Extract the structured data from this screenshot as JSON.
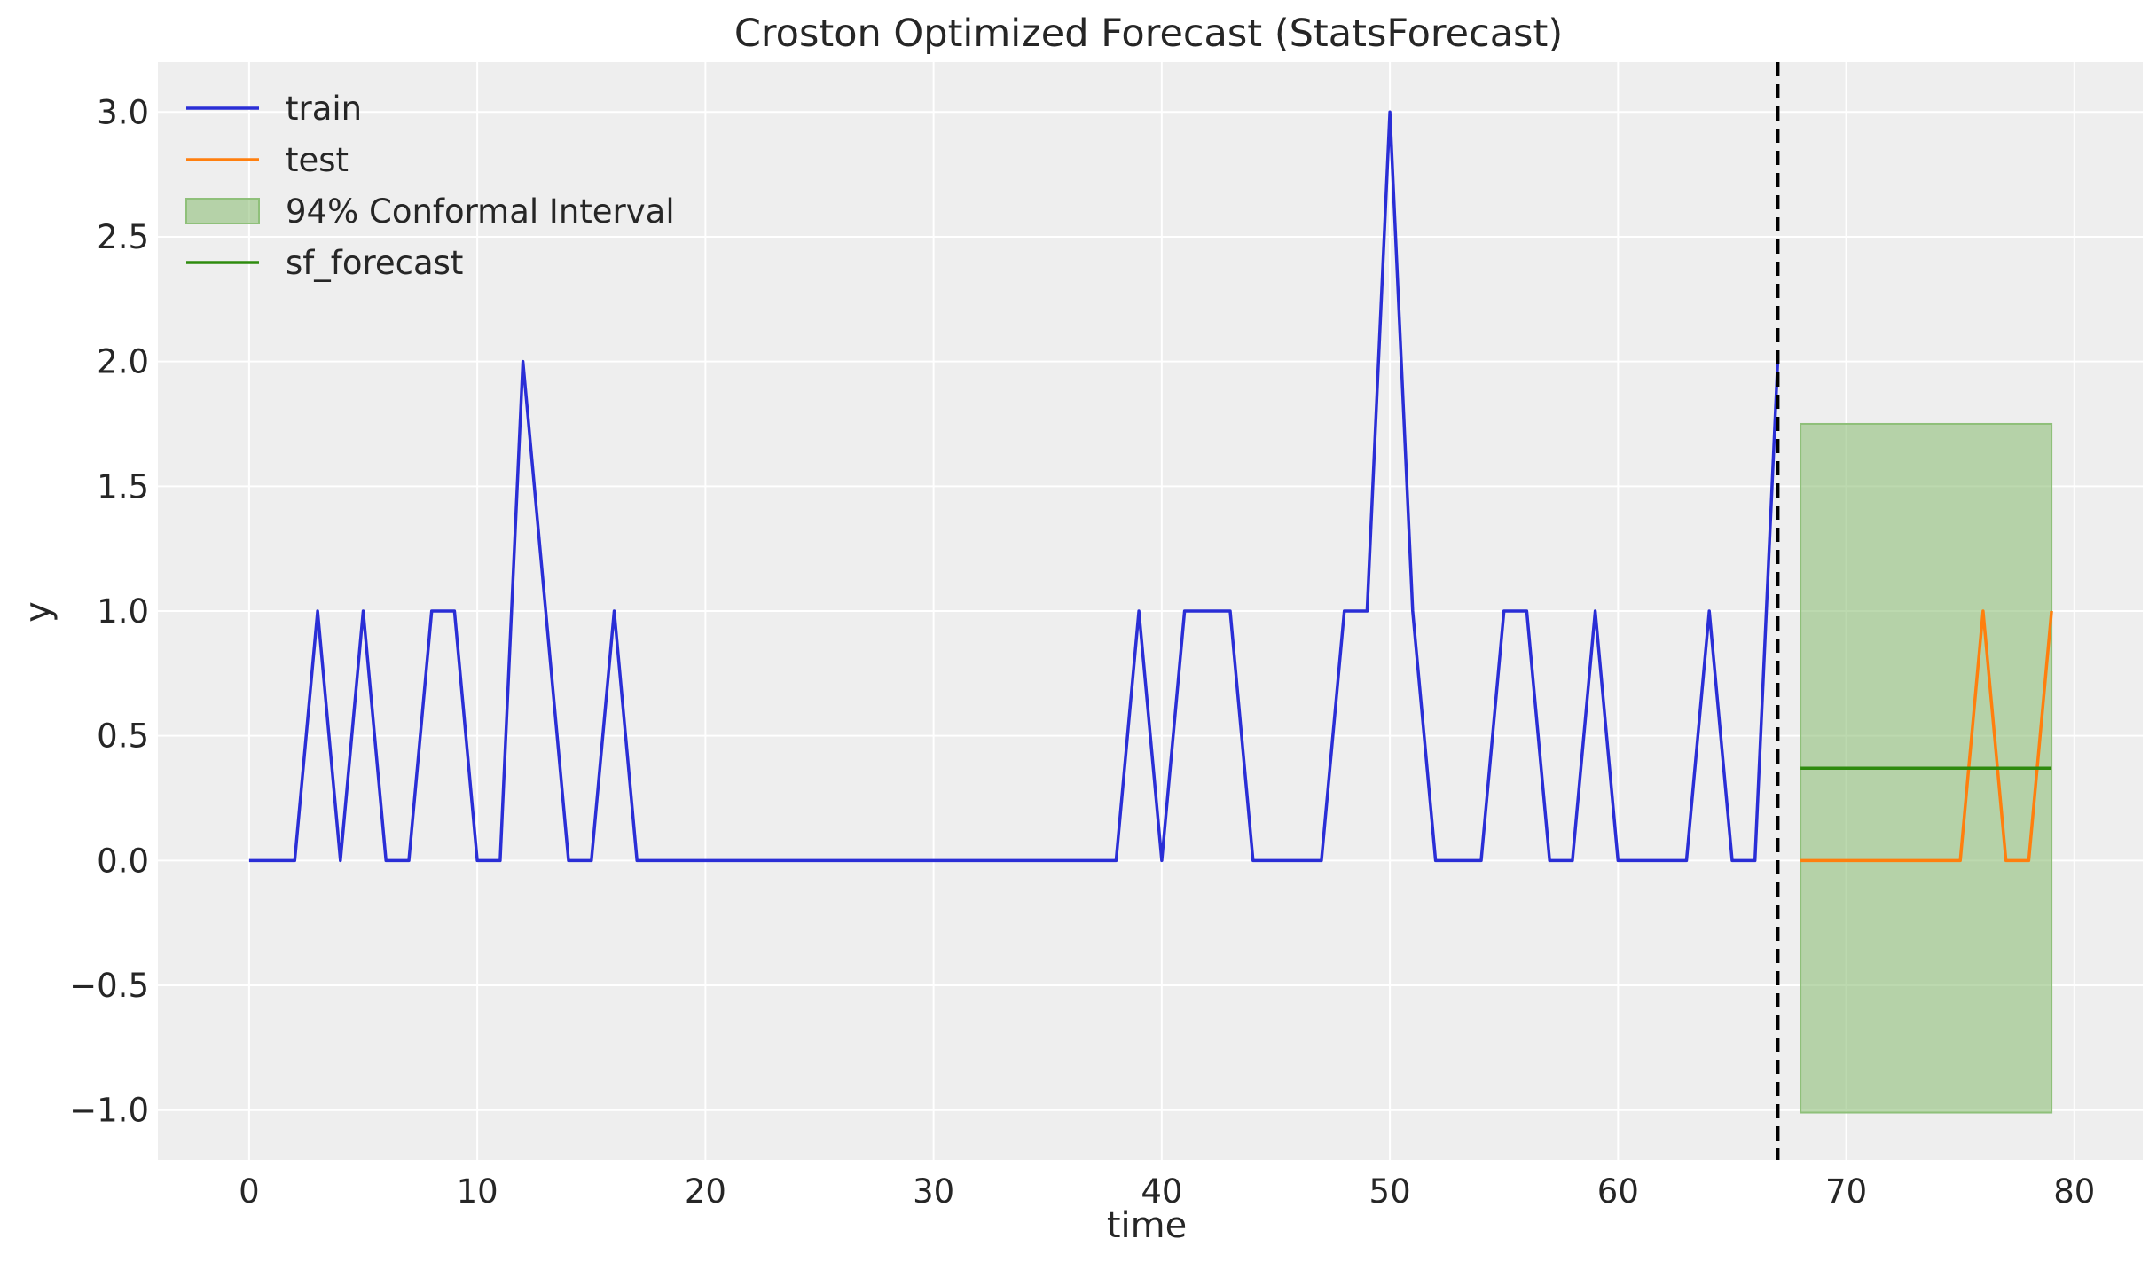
{
  "chart_data": {
    "type": "line",
    "title": "Croston Optimized Forecast (StatsForecast)",
    "xlabel": "time",
    "ylabel": "y",
    "xlim": [
      -4,
      83
    ],
    "ylim": [
      -1.2,
      3.2
    ],
    "xticks": [
      0,
      10,
      20,
      30,
      40,
      50,
      60,
      70,
      80
    ],
    "yticks": [
      -1.0,
      -0.5,
      0.0,
      0.5,
      1.0,
      1.5,
      2.0,
      2.5,
      3.0
    ],
    "xtick_labels": [
      "0",
      "10",
      "20",
      "30",
      "40",
      "50",
      "60",
      "70",
      "80"
    ],
    "ytick_labels": [
      "−1.0",
      "−0.5",
      "0.0",
      "0.5",
      "1.0",
      "1.5",
      "2.0",
      "2.5",
      "3.0"
    ],
    "grid": true,
    "legend_position": "top-left",
    "colors": {
      "background": "#eeeeee",
      "grid": "#ffffff",
      "train": "#2a2ed6",
      "test": "#ff7f0e",
      "interval_fill": "#8fc07a",
      "forecast": "#2e8b0e",
      "cutoff": "#000000"
    },
    "series": [
      {
        "name": "train",
        "x": [
          0,
          1,
          2,
          3,
          4,
          5,
          6,
          7,
          8,
          9,
          10,
          11,
          12,
          13,
          14,
          15,
          16,
          17,
          18,
          19,
          20,
          21,
          22,
          23,
          24,
          25,
          26,
          27,
          28,
          29,
          30,
          31,
          32,
          33,
          34,
          35,
          36,
          37,
          38,
          39,
          40,
          41,
          42,
          43,
          44,
          45,
          46,
          47,
          48,
          49,
          50,
          51,
          52,
          53,
          54,
          55,
          56,
          57,
          58,
          59,
          60,
          61,
          62,
          63,
          64,
          65,
          66,
          67
        ],
        "values": [
          0,
          0,
          0,
          1,
          0,
          1,
          0,
          0,
          1,
          1,
          0,
          0,
          2,
          1,
          0,
          0,
          1,
          0,
          0,
          0,
          0,
          0,
          0,
          0,
          0,
          0,
          0,
          0,
          0,
          0,
          0,
          0,
          0,
          0,
          0,
          0,
          0,
          0,
          0,
          1,
          0,
          1,
          1,
          1,
          0,
          0,
          0,
          0,
          1,
          1,
          3,
          1,
          0,
          0,
          0,
          1,
          1,
          0,
          0,
          1,
          0,
          0,
          0,
          0,
          1,
          0,
          0,
          2
        ]
      },
      {
        "name": "test",
        "x": [
          68,
          69,
          70,
          71,
          72,
          73,
          74,
          75,
          76,
          77,
          78,
          79
        ],
        "values": [
          0,
          0,
          0,
          0,
          0,
          0,
          0,
          0,
          1,
          0,
          0,
          1
        ]
      },
      {
        "name": "sf_forecast",
        "x": [
          68,
          79
        ],
        "values": [
          0.37,
          0.37
        ]
      }
    ],
    "interval": {
      "name": "94% Conformal Interval",
      "x_start": 68,
      "x_end": 79,
      "lower": -1.01,
      "upper": 1.75
    },
    "cutoff_x": 67
  }
}
